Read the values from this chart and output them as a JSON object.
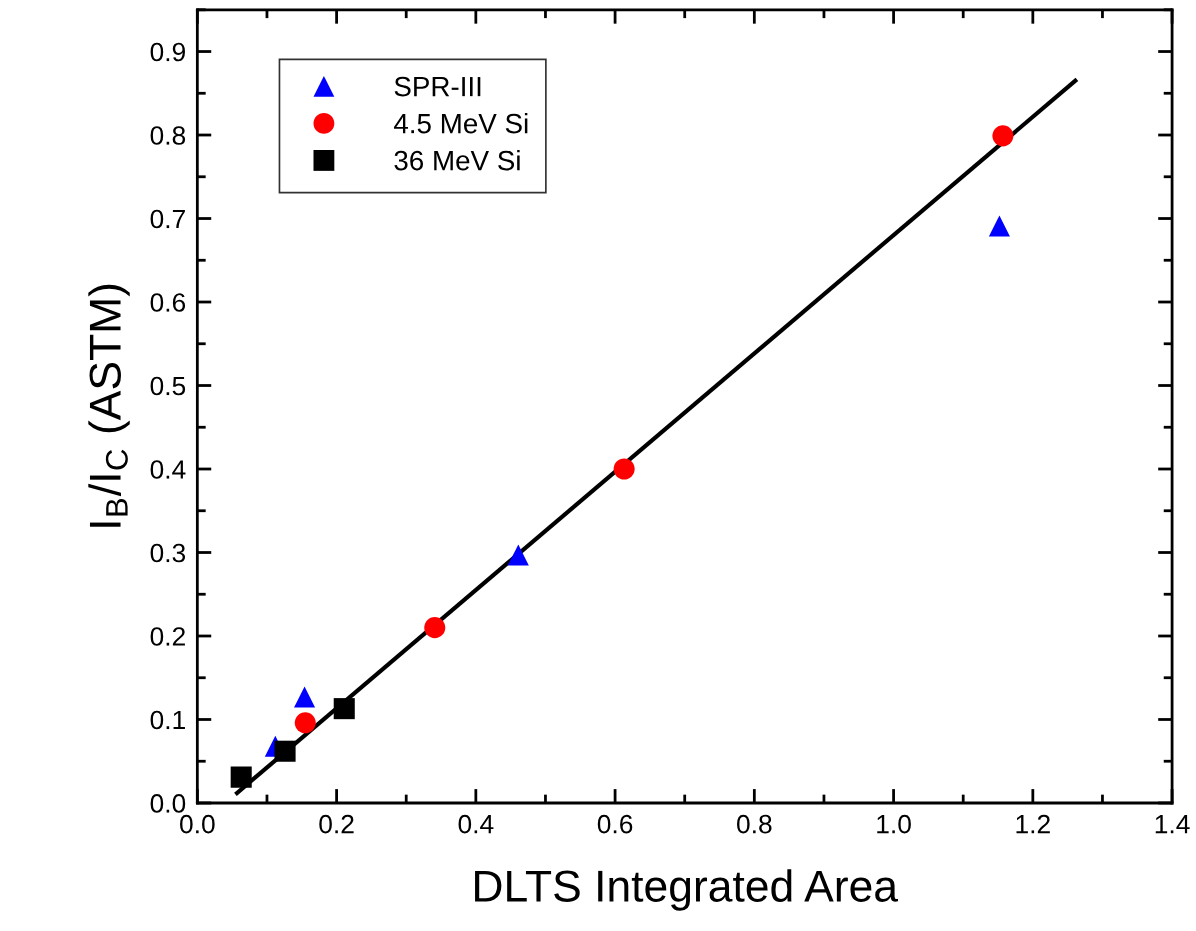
{
  "chart_data": {
    "type": "scatter",
    "xlabel": "DLTS Integrated Area",
    "ylabel": "I$_{B}$/I$_{C}$ (ASTM)",
    "series": [
      {
        "name": "SPR-III",
        "color": "#0000ff",
        "marker": "triangle",
        "x": [
          0.112,
          0.154,
          0.461,
          1.152
        ],
        "values": [
          0.068,
          0.127,
          0.297,
          0.691
        ]
      },
      {
        "name": "4.5 MeV Si",
        "color": "#ff0000",
        "marker": "circle",
        "x": [
          0.155,
          0.341,
          0.613,
          1.157
        ],
        "values": [
          0.096,
          0.21,
          0.4,
          0.799
        ]
      },
      {
        "name": "36 MeV Si",
        "color": "#000000",
        "marker": "square",
        "x": [
          0.063,
          0.126,
          0.211
        ],
        "values": [
          0.031,
          0.062,
          0.113
        ]
      },
      {
        "type": "line",
        "color": "#000000",
        "marker": "none",
        "x": [
          0.057,
          1.261
        ],
        "values": [
          0.012,
          0.865
        ]
      }
    ],
    "xlim": [
      0,
      1.4
    ],
    "ylim": [
      0,
      0.95
    ],
    "xticks": [
      {
        "value": 0,
        "label": "0.0"
      },
      0.2,
      0.4,
      0.6,
      0.8,
      {
        "value": 1,
        "label": "1.0"
      },
      1.2,
      1.4
    ],
    "yticks": [
      {
        "value": 0,
        "label": "0.0"
      },
      0.1,
      0.2,
      0.3,
      0.4,
      0.5,
      0.6,
      0.7,
      0.8,
      0.9
    ],
    "grid": false,
    "legend": "top left"
  }
}
